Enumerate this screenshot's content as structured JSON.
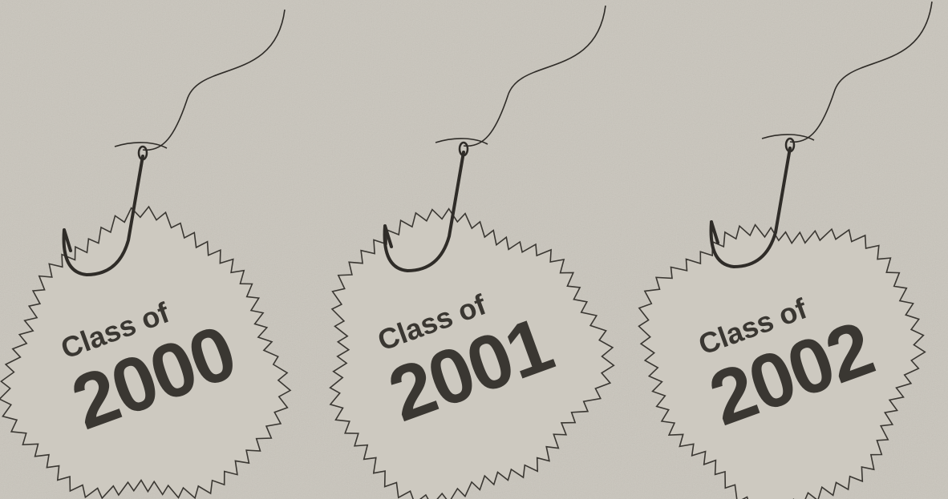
{
  "tags": [
    {
      "line1": "Class of",
      "line2": "2000"
    },
    {
      "line1": "Class of",
      "line2": "2001"
    },
    {
      "line1": "Class of",
      "line2": "2002"
    }
  ]
}
